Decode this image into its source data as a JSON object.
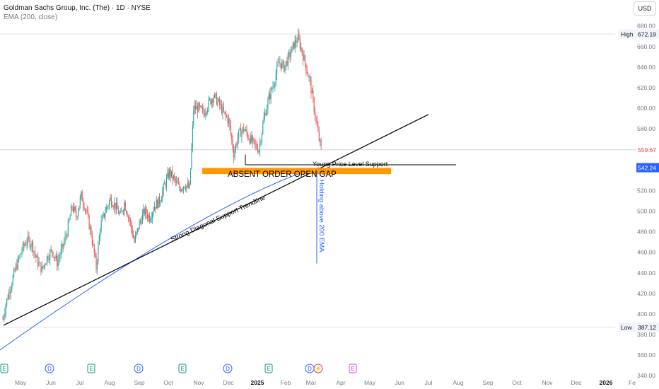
{
  "header": {
    "title": "Goldman Sachs Group, Inc. (The) · 1D · NYSE",
    "indicator": "EMA (200, close)"
  },
  "currency_button": "USD",
  "colors": {
    "up": "#26a69a",
    "down": "#ef5350",
    "ema": "#2962ff",
    "gap_band": "#ff9800",
    "price_badge": "#f23645",
    "ema_badge": "#2962ff"
  },
  "chart_data": {
    "type": "candlestick",
    "y_axis": {
      "ticks": [
        340,
        360,
        380,
        400,
        420,
        440,
        460,
        480,
        500,
        520,
        540,
        560,
        580,
        600,
        620,
        640,
        660,
        680
      ],
      "tick_labels": [
        "340.00",
        "360.00",
        "380.00",
        "400.00",
        "420.00",
        "440.00",
        "460.00",
        "480.00",
        "500.00",
        "520.00",
        "540.00",
        "560.00",
        "580.00",
        "600.00",
        "620.00",
        "640.00",
        "660.00",
        "680.00"
      ],
      "ylim": [
        336,
        686
      ]
    },
    "x_axis": {
      "ticks": [
        {
          "label": "May",
          "bold": false,
          "date_index": 0
        },
        {
          "label": "Jun",
          "bold": false,
          "date_index": 1
        },
        {
          "label": "Jul",
          "bold": false,
          "date_index": 2
        },
        {
          "label": "Aug",
          "bold": false,
          "date_index": 3
        },
        {
          "label": "Sep",
          "bold": false,
          "date_index": 4
        },
        {
          "label": "Oct",
          "bold": false,
          "date_index": 5
        },
        {
          "label": "Nov",
          "bold": false,
          "date_index": 6
        },
        {
          "label": "Dec",
          "bold": false,
          "date_index": 7
        },
        {
          "label": "2025",
          "bold": true,
          "date_index": 8
        },
        {
          "label": "Feb",
          "bold": false,
          "date_index": 9
        },
        {
          "label": "Mar",
          "bold": false,
          "date_index": 10
        },
        {
          "label": "Apr",
          "bold": false,
          "date_index": 11
        },
        {
          "label": "May",
          "bold": false,
          "date_index": 12
        },
        {
          "label": "Jun",
          "bold": false,
          "date_index": 13
        },
        {
          "label": "Jul",
          "bold": false,
          "date_index": 14
        },
        {
          "label": "Aug",
          "bold": false,
          "date_index": 15
        },
        {
          "label": "Sep",
          "bold": false,
          "date_index": 16
        },
        {
          "label": "Oct",
          "bold": false,
          "date_index": 17
        },
        {
          "label": "Nov",
          "bold": false,
          "date_index": 18
        },
        {
          "label": "Dec",
          "bold": false,
          "date_index": 19
        },
        {
          "label": "2026",
          "bold": true,
          "date_index": 20
        },
        {
          "label": "Fe",
          "bold": false,
          "date_index": 21
        }
      ]
    },
    "price_path": [
      [
        0,
        395
      ],
      [
        3,
        410
      ],
      [
        8,
        428
      ],
      [
        13,
        445
      ],
      [
        19,
        462
      ],
      [
        24,
        472
      ],
      [
        29,
        468
      ],
      [
        34,
        452
      ],
      [
        39,
        443
      ],
      [
        44,
        455
      ],
      [
        49,
        462
      ],
      [
        54,
        450
      ],
      [
        59,
        463
      ],
      [
        64,
        480
      ],
      [
        69,
        505
      ],
      [
        73,
        495
      ],
      [
        78,
        515
      ],
      [
        83,
        500
      ],
      [
        88,
        478
      ],
      [
        93,
        445
      ],
      [
        97,
        485
      ],
      [
        102,
        500
      ],
      [
        107,
        512
      ],
      [
        112,
        505
      ],
      [
        117,
        495
      ],
      [
        121,
        508
      ],
      [
        126,
        492
      ],
      [
        131,
        470
      ],
      [
        136,
        488
      ],
      [
        141,
        500
      ],
      [
        146,
        494
      ],
      [
        151,
        505
      ],
      [
        156,
        510
      ],
      [
        161,
        525
      ],
      [
        166,
        538
      ],
      [
        171,
        530
      ],
      [
        176,
        522
      ],
      [
        181,
        526
      ],
      [
        186,
        522
      ],
      [
        190,
        600
      ],
      [
        195,
        600
      ],
      [
        200,
        595
      ],
      [
        205,
        605
      ],
      [
        210,
        612
      ],
      [
        215,
        605
      ],
      [
        220,
        595
      ],
      [
        225,
        588
      ],
      [
        230,
        556
      ],
      [
        235,
        575
      ],
      [
        240,
        580
      ],
      [
        245,
        572
      ],
      [
        250,
        565
      ],
      [
        255,
        560
      ],
      [
        260,
        590
      ],
      [
        265,
        610
      ],
      [
        270,
        625
      ],
      [
        275,
        645
      ],
      [
        280,
        640
      ],
      [
        285,
        650
      ],
      [
        290,
        662
      ],
      [
        294,
        668
      ],
      [
        298,
        655
      ],
      [
        302,
        640
      ],
      [
        306,
        625
      ],
      [
        310,
        600
      ],
      [
        314,
        575
      ],
      [
        317,
        560
      ]
    ],
    "ema_200": [
      [
        370,
        9.5
      ],
      [
        380,
        8.5
      ],
      [
        389,
        7.2
      ],
      [
        396,
        6.3
      ],
      [
        402,
        5.6
      ],
      [
        408,
        4.7
      ],
      [
        414,
        4.0
      ],
      [
        419,
        3.4
      ],
      [
        424,
        2.8
      ],
      [
        430,
        2.2
      ],
      [
        436,
        1.6
      ],
      [
        442,
        1.0
      ],
      [
        446,
        0.4
      ],
      [
        449,
        -0.1
      ],
      [
        451,
        -0.5
      ],
      [
        453,
        -0.8
      ],
      [
        454,
        -1.0
      ],
      [
        455,
        -1.1
      ]
    ],
    "high": {
      "label": "High",
      "value": "672.19",
      "y": 672.19
    },
    "low": {
      "label": "Low",
      "value": "387.12",
      "y": 387.12
    },
    "last_price": {
      "value": "559.67",
      "y": 559.67
    },
    "ema_last": {
      "value": "542.24",
      "y": 542.24
    },
    "annotations": {
      "gap_label": "ABSENT ORDER OPEN GAP",
      "support_label": "Young Price Level Support",
      "trendline_label": "Strong Diagonal Support Trendline",
      "ema_label": "Holding above 200 EMA"
    },
    "events": [
      {
        "type": "E"
      },
      {
        "type": "D"
      },
      {
        "type": "E"
      },
      {
        "type": "D"
      },
      {
        "type": "E"
      },
      {
        "type": "D"
      },
      {
        "type": "E"
      },
      {
        "type": "D"
      },
      {
        "type": "E"
      }
    ]
  }
}
